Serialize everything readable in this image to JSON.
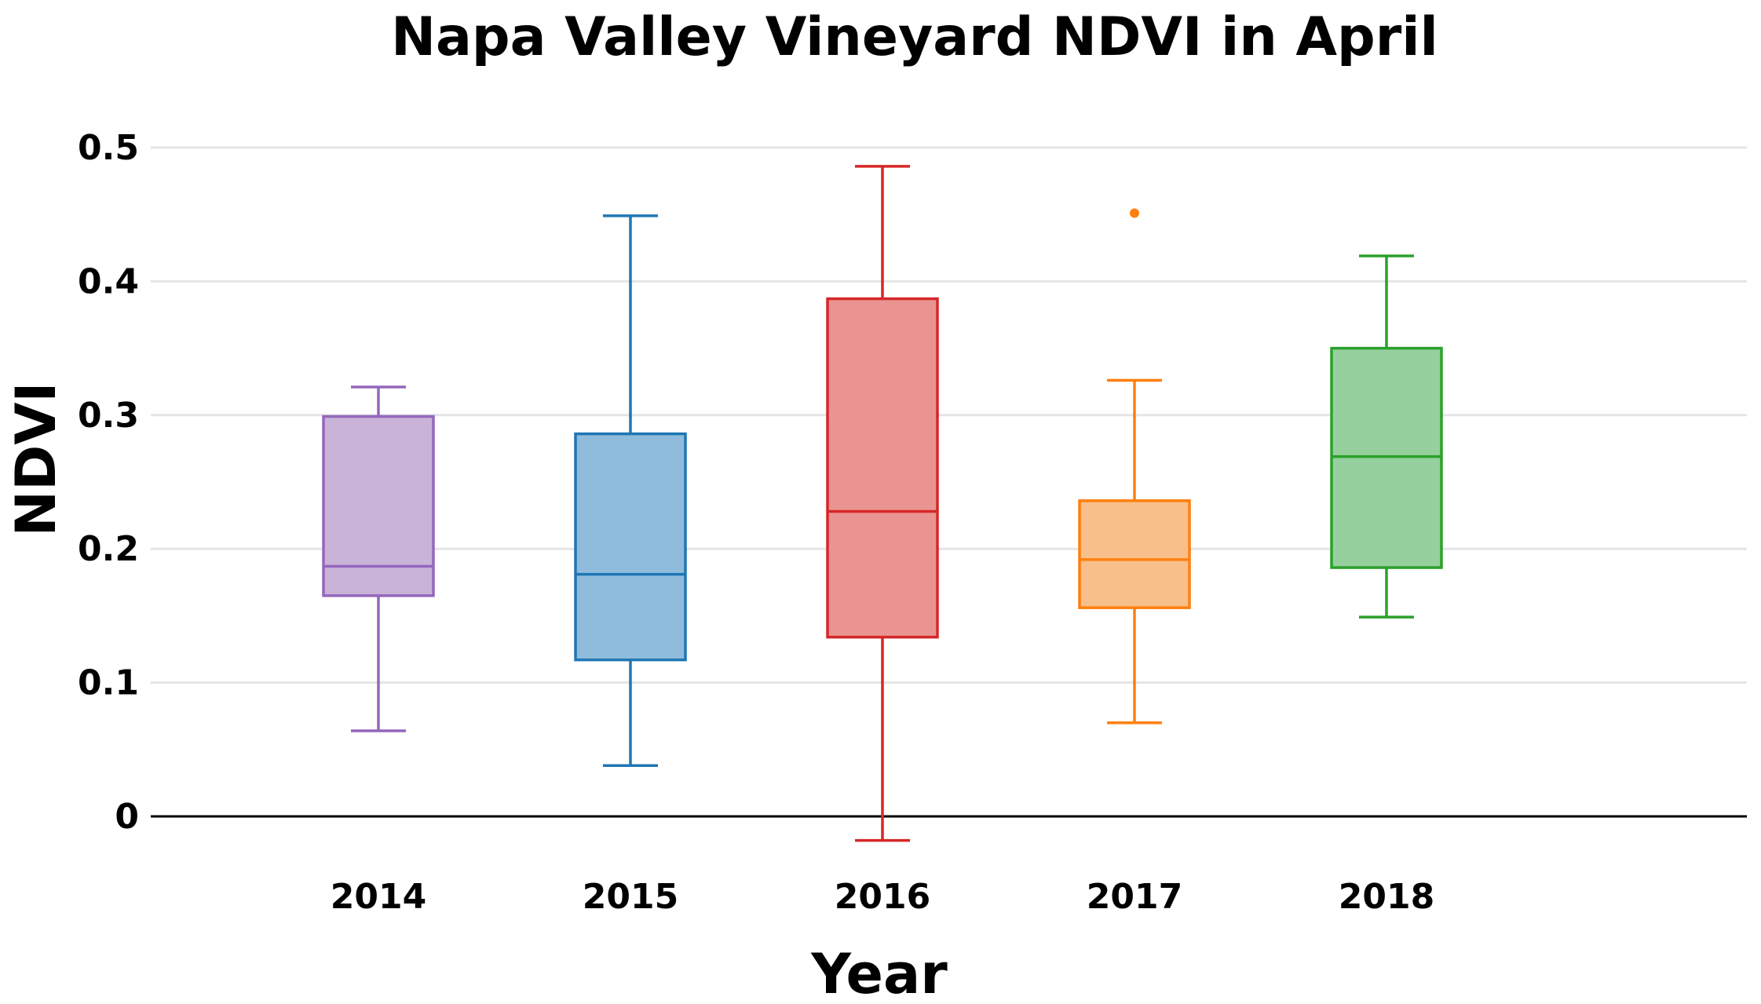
{
  "chart_data": {
    "type": "box",
    "title": "Napa Valley Vineyard NDVI in April",
    "xlabel": "Year",
    "ylabel": "NDVI",
    "ylim": [
      -0.02,
      0.5
    ],
    "yticks": [
      "0",
      "0.1",
      "0.2",
      "0.3",
      "0.4",
      "0.5"
    ],
    "ytick_values": [
      0,
      0.1,
      0.2,
      0.3,
      0.4,
      0.5
    ],
    "grid": true,
    "categories": [
      "2014",
      "2015",
      "2016",
      "2017",
      "2018"
    ],
    "series": [
      {
        "category": "2014",
        "color": "#9467bd",
        "fill": "#c9b3d8",
        "whisker_low": 0.064,
        "q1": 0.165,
        "median": 0.187,
        "q3": 0.299,
        "whisker_high": 0.321,
        "outliers": []
      },
      {
        "category": "2015",
        "color": "#1f77b4",
        "fill": "#8fbcdc",
        "whisker_low": 0.038,
        "q1": 0.117,
        "median": 0.181,
        "q3": 0.286,
        "whisker_high": 0.449,
        "outliers": []
      },
      {
        "category": "2016",
        "color": "#d62728",
        "fill": "#ea9491",
        "whisker_low": -0.018,
        "q1": 0.134,
        "median": 0.228,
        "q3": 0.387,
        "whisker_high": 0.486,
        "outliers": []
      },
      {
        "category": "2017",
        "color": "#ff7f0e",
        "fill": "#f9bf8b",
        "whisker_low": 0.07,
        "q1": 0.156,
        "median": 0.192,
        "q3": 0.236,
        "whisker_high": 0.326,
        "outliers": [
          0.451
        ]
      },
      {
        "category": "2018",
        "color": "#2ca02c",
        "fill": "#96d09e",
        "whisker_low": 0.149,
        "q1": 0.186,
        "median": 0.269,
        "q3": 0.35,
        "whisker_high": 0.419,
        "outliers": []
      }
    ]
  }
}
